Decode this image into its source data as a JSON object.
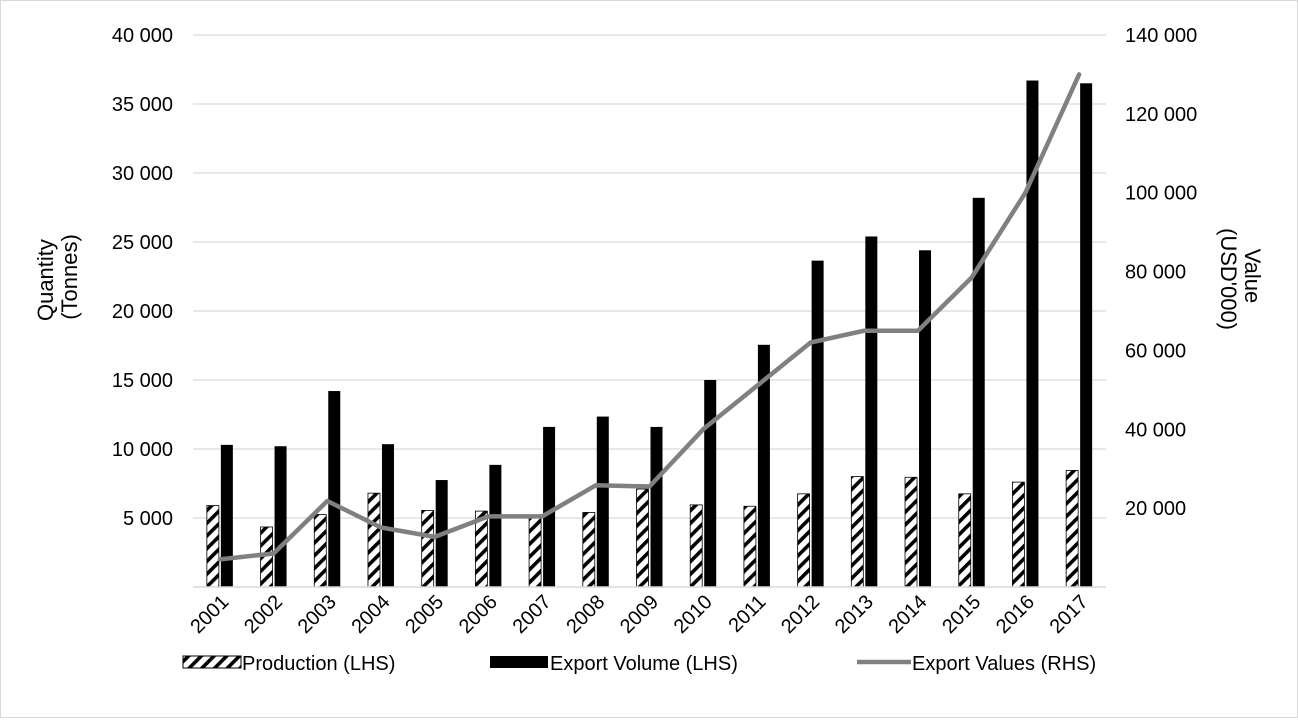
{
  "chart_data": {
    "type": "bar",
    "title": "",
    "categories": [
      "2001",
      "2002",
      "2003",
      "2004",
      "2005",
      "2006",
      "2007",
      "2008",
      "2009",
      "2010",
      "2011",
      "2012",
      "2013",
      "2014",
      "2015",
      "2016",
      "2017"
    ],
    "series": [
      {
        "name": "Production (LHS)",
        "type": "bar",
        "axis": "left",
        "pattern": "diagonal-hatch",
        "values": [
          5900,
          4350,
          5250,
          6800,
          5550,
          5500,
          5200,
          5400,
          7100,
          5950,
          5850,
          6750,
          8000,
          7950,
          6750,
          7600,
          8450
        ]
      },
      {
        "name": "Export Volume (LHS)",
        "type": "bar",
        "axis": "left",
        "values": [
          10300,
          10200,
          14200,
          10350,
          7750,
          8850,
          11600,
          12350,
          11600,
          15000,
          17550,
          23650,
          25400,
          24400,
          28200,
          36700,
          36500
        ]
      },
      {
        "name": "Export Values (RHS)",
        "type": "line",
        "axis": "right",
        "values": [
          7000,
          8500,
          21800,
          15100,
          12700,
          17900,
          17900,
          25800,
          25500,
          40000,
          51000,
          62000,
          65000,
          65000,
          78500,
          100000,
          130000
        ]
      }
    ],
    "y_left": {
      "label_lines": [
        "Quantity",
        "(Tonnes)"
      ],
      "ticks": [
        "5 000",
        "10 000",
        "15 000",
        "20 000",
        "25 000",
        "30 000",
        "35 000",
        "40 000"
      ],
      "tick_values": [
        5000,
        10000,
        15000,
        20000,
        25000,
        30000,
        35000,
        40000
      ],
      "ylim": [
        0,
        40000
      ]
    },
    "y_right": {
      "label_lines": [
        "Value",
        "(USD'000)"
      ],
      "ticks": [
        "20 000",
        "40 000",
        "60 000",
        "80 000",
        "100 000",
        "120 000",
        "140 000"
      ],
      "tick_values": [
        20000,
        40000,
        60000,
        80000,
        100000,
        120000,
        140000
      ],
      "ylim": [
        0,
        140000
      ]
    },
    "grid": true,
    "legend_position": "bottom",
    "colors": {
      "export_volume": "#000000",
      "export_values": "#808080",
      "gridline": "#d9d9d9",
      "hatch": "#000000"
    }
  }
}
